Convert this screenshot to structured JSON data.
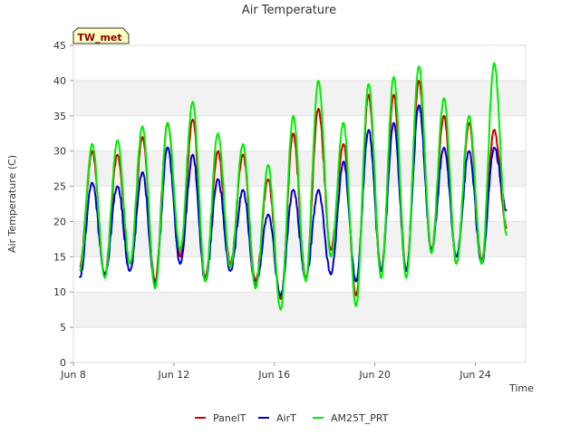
{
  "chart_data": {
    "type": "line",
    "title": "Air Temperature",
    "xlabel": "Time",
    "ylabel": "Air Temperature (C)",
    "ylim": [
      0,
      45
    ],
    "yticks": [
      0,
      5,
      10,
      15,
      20,
      25,
      30,
      35,
      40,
      45
    ],
    "xlim": [
      "2023-06-08",
      "2023-06-26"
    ],
    "xticks": [
      {
        "date": "2023-06-08",
        "label": "Jun 8"
      },
      {
        "date": "2023-06-12",
        "label": "Jun 12"
      },
      {
        "date": "2023-06-16",
        "label": "Jun 16"
      },
      {
        "date": "2023-06-20",
        "label": "Jun 20"
      },
      {
        "date": "2023-06-24",
        "label": "Jun 24"
      }
    ],
    "grid": "horizontal bands",
    "legend_position": "bottom",
    "badge": "TW_met",
    "series": [
      {
        "name": "PanelT",
        "color": "#cc0000",
        "x": [
          "2023-06-08 06:00",
          "2023-06-08 18:00",
          "2023-06-09 06:00",
          "2023-06-09 18:00",
          "2023-06-10 06:00",
          "2023-06-10 18:00",
          "2023-06-11 06:00",
          "2023-06-11 18:00",
          "2023-06-12 06:00",
          "2023-06-12 18:00",
          "2023-06-13 06:00",
          "2023-06-13 18:00",
          "2023-06-14 06:00",
          "2023-06-14 18:00",
          "2023-06-15 06:00",
          "2023-06-15 18:00",
          "2023-06-16 06:00",
          "2023-06-16 18:00",
          "2023-06-17 06:00",
          "2023-06-17 18:00",
          "2023-06-18 06:00",
          "2023-06-18 18:00",
          "2023-06-19 06:00",
          "2023-06-19 18:00",
          "2023-06-20 06:00",
          "2023-06-20 18:00",
          "2023-06-21 06:00",
          "2023-06-21 18:00",
          "2023-06-22 06:00",
          "2023-06-22 18:00",
          "2023-06-23 06:00",
          "2023-06-23 18:00",
          "2023-06-24 06:00",
          "2023-06-24 18:00",
          "2023-06-25 06:00",
          "2023-06-25 18:00"
        ],
        "values": [
          13.5,
          30,
          12.5,
          29.5,
          14,
          32,
          11.5,
          34,
          15,
          34.5,
          12,
          30,
          14,
          29.5,
          11.5,
          26,
          9,
          32.5,
          12,
          36,
          16,
          31,
          9.5,
          38,
          13,
          38,
          13,
          40,
          16,
          35,
          14,
          34,
          14.5,
          33,
          19,
          null
        ]
      },
      {
        "name": "AirT",
        "color": "#0000cc",
        "x": [
          "2023-06-08 06:00",
          "2023-06-08 18:00",
          "2023-06-09 06:00",
          "2023-06-09 18:00",
          "2023-06-10 06:00",
          "2023-06-10 18:00",
          "2023-06-11 06:00",
          "2023-06-11 18:00",
          "2023-06-12 06:00",
          "2023-06-12 18:00",
          "2023-06-13 06:00",
          "2023-06-13 18:00",
          "2023-06-14 06:00",
          "2023-06-14 18:00",
          "2023-06-15 06:00",
          "2023-06-15 18:00",
          "2023-06-16 06:00",
          "2023-06-16 18:00",
          "2023-06-17 06:00",
          "2023-06-17 18:00",
          "2023-06-18 06:00",
          "2023-06-18 18:00",
          "2023-06-19 06:00",
          "2023-06-19 18:00",
          "2023-06-20 06:00",
          "2023-06-20 18:00",
          "2023-06-21 06:00",
          "2023-06-21 18:00",
          "2023-06-22 06:00",
          "2023-06-22 18:00",
          "2023-06-23 06:00",
          "2023-06-23 18:00",
          "2023-06-24 06:00",
          "2023-06-24 18:00",
          "2023-06-25 06:00",
          "2023-06-25 18:00"
        ],
        "values": [
          12,
          25.5,
          12.5,
          25,
          13,
          27,
          11,
          30.5,
          14,
          29.5,
          11.5,
          26,
          13,
          24.5,
          11,
          21,
          9.5,
          24.5,
          12,
          24.5,
          12.5,
          28.5,
          11.5,
          33,
          13,
          34,
          13,
          36.5,
          16,
          30.5,
          15,
          30,
          14,
          30.5,
          21.5,
          null
        ]
      },
      {
        "name": "AM25T_PRT",
        "color": "#00ee00",
        "x": [
          "2023-06-08 06:00",
          "2023-06-08 18:00",
          "2023-06-09 06:00",
          "2023-06-09 18:00",
          "2023-06-10 06:00",
          "2023-06-10 18:00",
          "2023-06-11 06:00",
          "2023-06-11 18:00",
          "2023-06-12 06:00",
          "2023-06-12 18:00",
          "2023-06-13 06:00",
          "2023-06-13 18:00",
          "2023-06-14 06:00",
          "2023-06-14 18:00",
          "2023-06-15 06:00",
          "2023-06-15 18:00",
          "2023-06-16 06:00",
          "2023-06-16 18:00",
          "2023-06-17 06:00",
          "2023-06-17 18:00",
          "2023-06-18 06:00",
          "2023-06-18 18:00",
          "2023-06-19 06:00",
          "2023-06-19 18:00",
          "2023-06-20 06:00",
          "2023-06-20 18:00",
          "2023-06-21 06:00",
          "2023-06-21 18:00",
          "2023-06-22 06:00",
          "2023-06-22 18:00",
          "2023-06-23 06:00",
          "2023-06-23 18:00",
          "2023-06-24 06:00",
          "2023-06-24 18:00",
          "2023-06-25 06:00",
          "2023-06-25 18:00"
        ],
        "values": [
          13,
          31,
          12,
          31.5,
          14,
          33.5,
          10.5,
          34,
          16,
          37,
          11.5,
          32.5,
          13.5,
          31,
          10.5,
          28,
          7.5,
          35,
          11.5,
          40,
          15,
          34,
          8,
          39.5,
          12,
          40.5,
          12,
          42,
          15.5,
          37.5,
          14,
          35,
          14,
          42.5,
          18,
          null
        ]
      }
    ]
  }
}
